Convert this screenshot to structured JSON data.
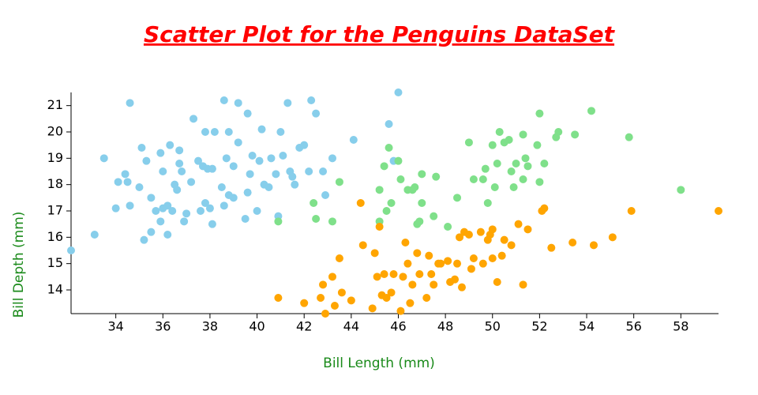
{
  "chart_data": {
    "type": "scatter",
    "title": "Scatter Plot for the Penguins DataSet",
    "x_label": "Bill Length (mm)",
    "y_label": "Bill Depth (mm)",
    "xlim": [
      32.1,
      59.6
    ],
    "ylim": [
      13.1,
      21.5
    ],
    "xticks": [
      34,
      36,
      38,
      40,
      42,
      44,
      46,
      48,
      50,
      52,
      54,
      56,
      58
    ],
    "yticks": [
      14,
      15,
      16,
      17,
      18,
      19,
      20,
      21
    ],
    "series": [
      {
        "color": "#87ceeb",
        "x": [
          32.1,
          33.1,
          33.5,
          34.0,
          34.1,
          34.4,
          34.5,
          34.6,
          34.6,
          35.0,
          35.1,
          35.2,
          35.3,
          35.5,
          35.5,
          35.7,
          35.9,
          36.0,
          36.0,
          36.2,
          36.2,
          36.3,
          36.4,
          36.5,
          36.6,
          36.7,
          36.8,
          37.0,
          37.2,
          37.3,
          37.5,
          37.6,
          37.7,
          37.8,
          37.8,
          38.0,
          38.1,
          38.2,
          38.5,
          38.6,
          38.6,
          38.7,
          38.8,
          39.0,
          39.2,
          39.2,
          39.5,
          39.6,
          39.7,
          39.8,
          40.1,
          40.2,
          40.3,
          40.6,
          40.8,
          40.9,
          41.1,
          41.3,
          41.4,
          41.5,
          41.6,
          42.0,
          42.2,
          42.3,
          42.5,
          42.8,
          42.9,
          43.2,
          44.1,
          45.6,
          46.0,
          45.8,
          40.0,
          38.1,
          39.0,
          36.9,
          41.0,
          37.9,
          40.5,
          36.7,
          35.9,
          41.8,
          39.6,
          38.8
        ],
        "values": [
          15.5,
          16.1,
          19.0,
          17.1,
          18.1,
          18.4,
          18.1,
          21.1,
          17.2,
          17.9,
          19.4,
          15.9,
          18.9,
          16.2,
          17.5,
          17.0,
          19.2,
          18.5,
          17.1,
          16.1,
          17.2,
          19.5,
          17.0,
          18.0,
          17.8,
          19.3,
          18.5,
          16.9,
          18.1,
          20.5,
          18.9,
          17.0,
          18.7,
          17.3,
          20.0,
          17.1,
          18.6,
          20.0,
          17.9,
          21.2,
          17.2,
          19.0,
          17.6,
          18.7,
          21.1,
          19.6,
          16.7,
          17.7,
          18.4,
          19.1,
          18.9,
          20.1,
          18.0,
          19.0,
          18.4,
          16.8,
          19.1,
          21.1,
          18.5,
          18.3,
          18.0,
          19.5,
          18.5,
          21.2,
          20.7,
          18.5,
          17.6,
          19.0,
          19.7,
          20.3,
          21.5,
          18.9,
          17.0,
          16.5,
          17.5,
          16.6,
          20.0,
          18.6,
          17.9,
          18.8,
          16.6,
          19.4,
          20.7,
          20.0
        ]
      },
      {
        "color": "#7fe08a",
        "x": [
          40.9,
          42.4,
          42.5,
          43.2,
          43.5,
          45.2,
          45.2,
          45.4,
          45.5,
          45.6,
          45.7,
          46.0,
          46.1,
          46.4,
          46.6,
          46.7,
          46.8,
          47.0,
          47.5,
          47.6,
          48.1,
          49.0,
          49.2,
          49.6,
          49.7,
          50.0,
          50.2,
          50.3,
          50.5,
          50.7,
          50.8,
          51.0,
          51.3,
          51.4,
          51.5,
          51.9,
          52.0,
          52.0,
          52.2,
          52.7,
          52.8,
          53.5,
          54.2,
          55.8,
          58.0,
          49.8,
          50.1,
          48.5,
          46.9,
          47.0,
          50.9,
          51.3
        ],
        "values": [
          16.6,
          17.3,
          16.7,
          16.6,
          18.1,
          16.6,
          17.8,
          18.7,
          17.0,
          19.4,
          17.3,
          18.9,
          18.2,
          17.8,
          17.8,
          17.9,
          16.5,
          17.3,
          16.8,
          18.3,
          16.4,
          19.6,
          18.2,
          18.2,
          18.6,
          19.5,
          18.8,
          20.0,
          19.6,
          19.7,
          18.5,
          18.8,
          19.9,
          19.0,
          18.7,
          19.5,
          20.7,
          18.1,
          18.8,
          19.8,
          20.0,
          19.9,
          20.8,
          19.8,
          17.8,
          17.3,
          17.9,
          17.5,
          16.6,
          18.4,
          17.9,
          18.2
        ]
      },
      {
        "color": "#ffa500",
        "x": [
          40.9,
          42.0,
          42.7,
          42.9,
          43.2,
          43.3,
          43.5,
          43.6,
          44.0,
          44.4,
          44.5,
          45.1,
          45.2,
          45.3,
          45.4,
          45.5,
          45.8,
          46.1,
          46.2,
          46.4,
          46.5,
          46.6,
          46.8,
          47.2,
          47.3,
          47.5,
          47.7,
          48.1,
          48.2,
          48.4,
          48.5,
          48.7,
          49.0,
          49.1,
          49.2,
          49.5,
          49.8,
          49.9,
          50.0,
          50.2,
          50.4,
          50.5,
          50.8,
          51.1,
          51.3,
          51.5,
          52.1,
          52.2,
          52.5,
          53.4,
          54.3,
          55.1,
          55.9,
          59.6,
          47.4,
          46.9,
          48.8,
          45.0,
          49.6,
          44.9,
          46.3,
          47.8,
          42.8,
          50.0,
          45.7,
          48.6
        ],
        "values": [
          13.7,
          13.5,
          13.7,
          13.1,
          14.5,
          13.4,
          15.2,
          13.9,
          13.6,
          17.3,
          15.7,
          14.5,
          16.4,
          13.8,
          14.6,
          13.7,
          14.6,
          13.2,
          14.5,
          15.0,
          13.5,
          14.2,
          15.4,
          13.7,
          15.3,
          14.2,
          15.0,
          15.1,
          14.3,
          14.4,
          15.0,
          14.1,
          16.1,
          14.8,
          15.2,
          16.2,
          15.9,
          16.1,
          15.2,
          14.3,
          15.3,
          15.9,
          15.7,
          16.5,
          14.2,
          16.3,
          17.0,
          17.1,
          15.6,
          15.8,
          15.7,
          16.0,
          17.0,
          17.0,
          14.6,
          14.6,
          16.2,
          15.4,
          15.0,
          13.3,
          15.8,
          15.0,
          14.2,
          16.3,
          13.9,
          16.0
        ]
      }
    ]
  }
}
